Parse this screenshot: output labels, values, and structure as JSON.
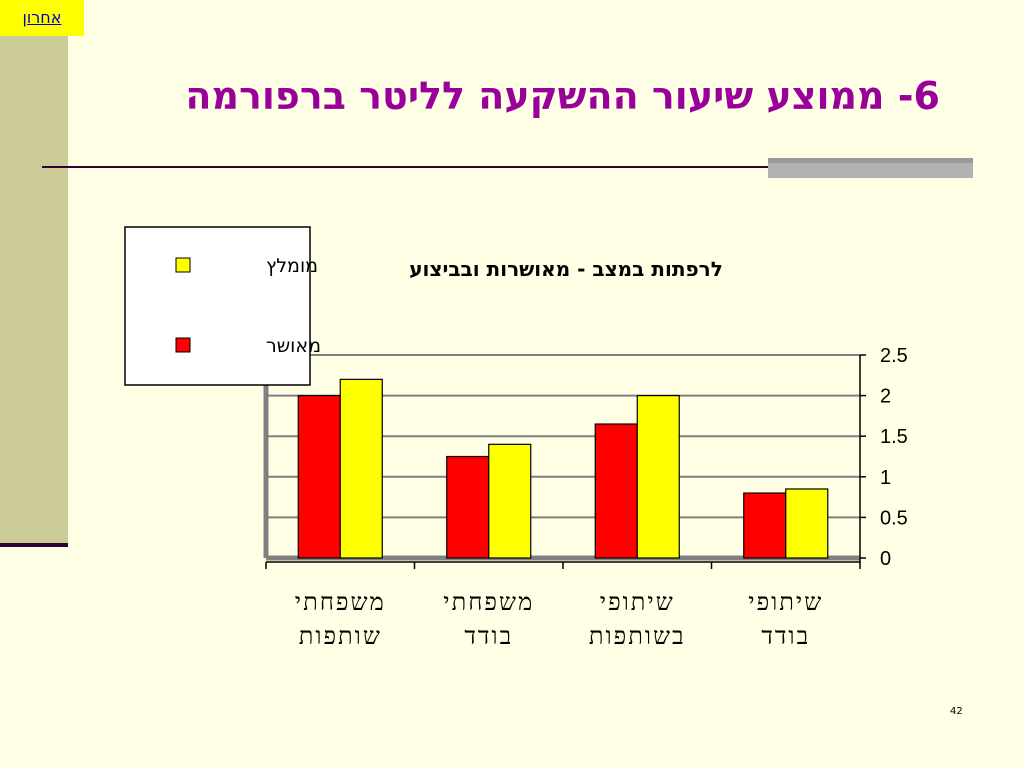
{
  "nav": {
    "last_label": "אחרון"
  },
  "slide": {
    "title": "6- ממוצע שיעור ההשקעה לליטר ברפורמה",
    "number": "42"
  },
  "chart_data": {
    "type": "bar",
    "title": "לרפתות במצב - מאושרות ובביצוע",
    "categories": [
      [
        "שיתופי",
        "בודד"
      ],
      [
        "שיתופי",
        "בשותפות"
      ],
      [
        "משפחתי",
        "בודד"
      ],
      [
        "משפחתי",
        "שותפות"
      ]
    ],
    "series": [
      {
        "name": "מאושר",
        "color": "#FF0000",
        "values": [
          0.8,
          1.65,
          1.25,
          2.0
        ]
      },
      {
        "name": "מומלץ",
        "color": "#FFFF00",
        "values": [
          0.85,
          2.0,
          1.4,
          2.2
        ]
      }
    ],
    "ylim": [
      0,
      2.5
    ],
    "yticks": [
      "0",
      "0.5",
      "1",
      "1.5",
      "2",
      "2.5"
    ],
    "grid": true,
    "legend_position": "top-left",
    "axis_side": "right"
  }
}
